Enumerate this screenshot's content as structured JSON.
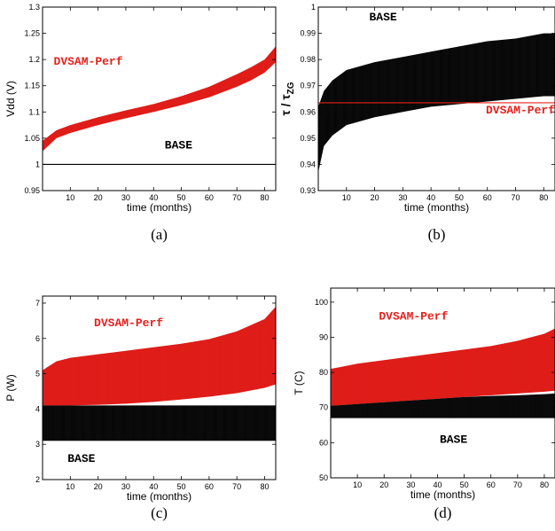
{
  "colors": {
    "dvsam": "#e8201c",
    "base": "#000000"
  },
  "chart_data": [
    {
      "id": "a",
      "type": "area",
      "caption": "(a)",
      "xlabel": "time (months)",
      "ylabel": "Vdd (V)",
      "xlim": [
        0,
        84
      ],
      "ylim": [
        0.95,
        1.3
      ],
      "xticks": [
        10,
        20,
        30,
        40,
        50,
        60,
        70,
        80
      ],
      "yticks": [
        0.95,
        1,
        1.05,
        1.1,
        1.15,
        1.2,
        1.25,
        1.3
      ],
      "ytick_labels": [
        "0.95",
        "1",
        "1.05",
        "1.1",
        "1.15",
        "1.2",
        "1.25",
        "1.3"
      ],
      "series": [
        {
          "name": "DVSAM-Perf",
          "x": [
            0,
            5,
            10,
            20,
            30,
            40,
            50,
            60,
            70,
            75,
            80,
            84
          ],
          "low": [
            1.025,
            1.05,
            1.06,
            1.075,
            1.088,
            1.1,
            1.113,
            1.128,
            1.148,
            1.16,
            1.175,
            1.195
          ],
          "high": [
            1.045,
            1.065,
            1.075,
            1.09,
            1.103,
            1.115,
            1.13,
            1.148,
            1.172,
            1.185,
            1.2,
            1.225
          ]
        },
        {
          "name": "BASE",
          "x": [
            0,
            84
          ],
          "low": [
            1.0,
            1.0
          ],
          "high": [
            1.0,
            1.0
          ]
        }
      ],
      "annotations": [
        {
          "text": "DVSAM-Perf",
          "x": 4,
          "y": 1.19,
          "anchor": "start",
          "color": "#e8201c"
        },
        {
          "text": "BASE",
          "x": 49,
          "y": 1.03,
          "anchor": "middle",
          "color": "#000000"
        }
      ]
    },
    {
      "id": "b",
      "type": "area",
      "caption": "(b)",
      "xlabel": "time (months)",
      "ylabel_main": "τ / τ",
      "ylabel_sub": "ZG",
      "xlim": [
        0,
        84
      ],
      "ylim": [
        0.93,
        1.0
      ],
      "xticks": [
        10,
        20,
        30,
        40,
        50,
        60,
        70,
        80
      ],
      "yticks": [
        0.93,
        0.94,
        0.95,
        0.96,
        0.97,
        0.98,
        0.99,
        1.0
      ],
      "ytick_labels": [
        "0.93",
        "0.94",
        "0.95",
        "0.96",
        "0.97",
        "0.98",
        "0.99",
        "1"
      ],
      "series": [
        {
          "name": "BASE",
          "x": [
            0,
            2,
            5,
            10,
            20,
            30,
            40,
            50,
            60,
            70,
            80,
            84
          ],
          "low": [
            0.937,
            0.947,
            0.951,
            0.955,
            0.958,
            0.96,
            0.962,
            0.963,
            0.964,
            0.965,
            0.966,
            0.966
          ],
          "high": [
            0.962,
            0.968,
            0.972,
            0.976,
            0.979,
            0.981,
            0.983,
            0.985,
            0.987,
            0.988,
            0.99,
            0.99
          ]
        },
        {
          "name": "DVSAM-Perf",
          "x": [
            0,
            84
          ],
          "low": [
            0.9635,
            0.9635
          ],
          "high": [
            0.9635,
            0.9635
          ]
        }
      ],
      "annotations": [
        {
          "text": "BASE",
          "x": 23,
          "y": 0.995,
          "anchor": "middle",
          "color": "#000000"
        },
        {
          "text": "DVSAM-Perf",
          "x": 84,
          "y": 0.9595,
          "anchor": "end",
          "color": "#e8201c"
        }
      ]
    },
    {
      "id": "c",
      "type": "area",
      "caption": "(c)",
      "xlabel": "time (months)",
      "ylabel": "P (W)",
      "xlim": [
        0,
        84
      ],
      "ylim": [
        2,
        7.2
      ],
      "xticks": [
        10,
        20,
        30,
        40,
        50,
        60,
        70,
        80
      ],
      "yticks": [
        2,
        3,
        4,
        5,
        6,
        7
      ],
      "ytick_labels": [
        "2",
        "3",
        "4",
        "5",
        "6",
        "7"
      ],
      "series": [
        {
          "name": "DVSAM-Perf",
          "x": [
            0,
            5,
            10,
            20,
            30,
            40,
            50,
            60,
            70,
            80,
            84
          ],
          "low": [
            4.1,
            4.1,
            4.1,
            4.12,
            4.15,
            4.2,
            4.27,
            4.35,
            4.45,
            4.6,
            4.7
          ],
          "high": [
            5.1,
            5.35,
            5.45,
            5.55,
            5.65,
            5.75,
            5.85,
            5.98,
            6.2,
            6.55,
            6.9
          ]
        },
        {
          "name": "BASE",
          "x": [
            0,
            84
          ],
          "low": [
            3.1,
            3.1
          ],
          "high": [
            4.1,
            4.1
          ]
        }
      ],
      "annotations": [
        {
          "text": "DVSAM-Perf",
          "x": 31,
          "y": 6.35,
          "anchor": "middle",
          "color": "#e8201c"
        },
        {
          "text": "BASE",
          "x": 14,
          "y": 2.5,
          "anchor": "middle",
          "color": "#000000"
        }
      ]
    },
    {
      "id": "d",
      "type": "area",
      "caption": "(d)",
      "xlabel": "time (months)",
      "ylabel": "T (C)",
      "xlim": [
        0,
        84
      ],
      "ylim": [
        50,
        104
      ],
      "xticks": [
        10,
        20,
        30,
        40,
        50,
        60,
        70,
        80
      ],
      "yticks": [
        50,
        60,
        70,
        80,
        90,
        100
      ],
      "ytick_labels": [
        "50",
        "60",
        "70",
        "80",
        "90",
        "100"
      ],
      "series": [
        {
          "name": "DVSAM-Perf",
          "x": [
            0,
            10,
            20,
            30,
            40,
            50,
            60,
            70,
            80,
            84
          ],
          "low": [
            70.5,
            71.0,
            71.5,
            72.0,
            72.5,
            73.0,
            73.5,
            74.0,
            74.5,
            74.8
          ],
          "high": [
            81.0,
            82.5,
            83.5,
            84.5,
            85.5,
            86.5,
            87.5,
            89.0,
            91.0,
            92.5
          ]
        },
        {
          "name": "BASE",
          "x": [
            0,
            10,
            20,
            30,
            40,
            50,
            60,
            70,
            80,
            84
          ],
          "low": [
            67.0,
            67.0,
            67.0,
            67.0,
            67.0,
            67.0,
            67.0,
            67.0,
            67.0,
            67.0
          ],
          "high": [
            70.5,
            71.0,
            71.5,
            72.0,
            72.5,
            73.0,
            73.3,
            73.5,
            73.8,
            74.0
          ]
        }
      ],
      "annotations": [
        {
          "text": "DVSAM-Perf",
          "x": 31,
          "y": 95,
          "anchor": "middle",
          "color": "#e8201c"
        },
        {
          "text": "BASE",
          "x": 46,
          "y": 60,
          "anchor": "middle",
          "color": "#000000"
        }
      ]
    }
  ]
}
